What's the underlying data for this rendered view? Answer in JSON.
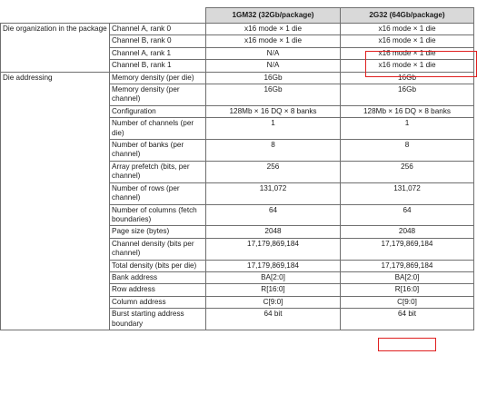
{
  "table": {
    "columns": [
      "",
      "",
      "1GM32 (32Gb/package)",
      "2G32 (64Gb/package)"
    ],
    "groups": [
      {
        "label": "Die organization in the package",
        "rows": [
          {
            "param": "Channel A, rank 0",
            "col1": "x16 mode × 1 die",
            "col2": "x16 mode × 1 die"
          },
          {
            "param": "Channel B, rank 0",
            "col1": "x16 mode × 1 die",
            "col2": "x16 mode × 1 die"
          },
          {
            "param": "Channel A, rank 1",
            "col1": "N/A",
            "col2": "x16 mode × 1 die"
          },
          {
            "param": "Channel B, rank 1",
            "col1": "N/A",
            "col2": "x16 mode × 1 die"
          }
        ]
      },
      {
        "label": "Die addressing",
        "rows": [
          {
            "param": "Memory density (per die)",
            "col1": "16Gb",
            "col2": "16Gb"
          },
          {
            "param": "Memory density (per channel)",
            "col1": "16Gb",
            "col2": "16Gb"
          },
          {
            "param": "Configuration",
            "col1": "128Mb × 16 DQ × 8 banks",
            "col2": "128Mb × 16 DQ × 8 banks"
          },
          {
            "param": "Number of channels (per die)",
            "col1": "1",
            "col2": "1"
          },
          {
            "param": "Number of banks (per channel)",
            "col1": "8",
            "col2": "8"
          },
          {
            "param": "Array prefetch (bits, per channel)",
            "col1": "256",
            "col2": "256"
          },
          {
            "param": "Number of rows (per channel)",
            "col1": "131,072",
            "col2": "131,072"
          },
          {
            "param": "Number of columns (fetch boundaries)",
            "col1": "64",
            "col2": "64"
          },
          {
            "param": "Page size (bytes)",
            "col1": "2048",
            "col2": "2048"
          },
          {
            "param": "Channel density (bits per channel)",
            "col1": "17,179,869,184",
            "col2": "17,179,869,184"
          },
          {
            "param": "Total density (bits per die)",
            "col1": "17,179,869,184",
            "col2": "17,179,869,184"
          },
          {
            "param": "Bank address",
            "col1": "BA[2:0]",
            "col2": "BA[2:0]"
          },
          {
            "param": "Row address",
            "col1": "R[16:0]",
            "col2": "R[16:0]"
          },
          {
            "param": "Column address",
            "col1": "C[9:0]",
            "col2": "C[9:0]"
          },
          {
            "param": "Burst starting address boundary",
            "col1": "64 bit",
            "col2": "64 bit"
          }
        ]
      }
    ]
  },
  "highlight_color": "#e02020"
}
